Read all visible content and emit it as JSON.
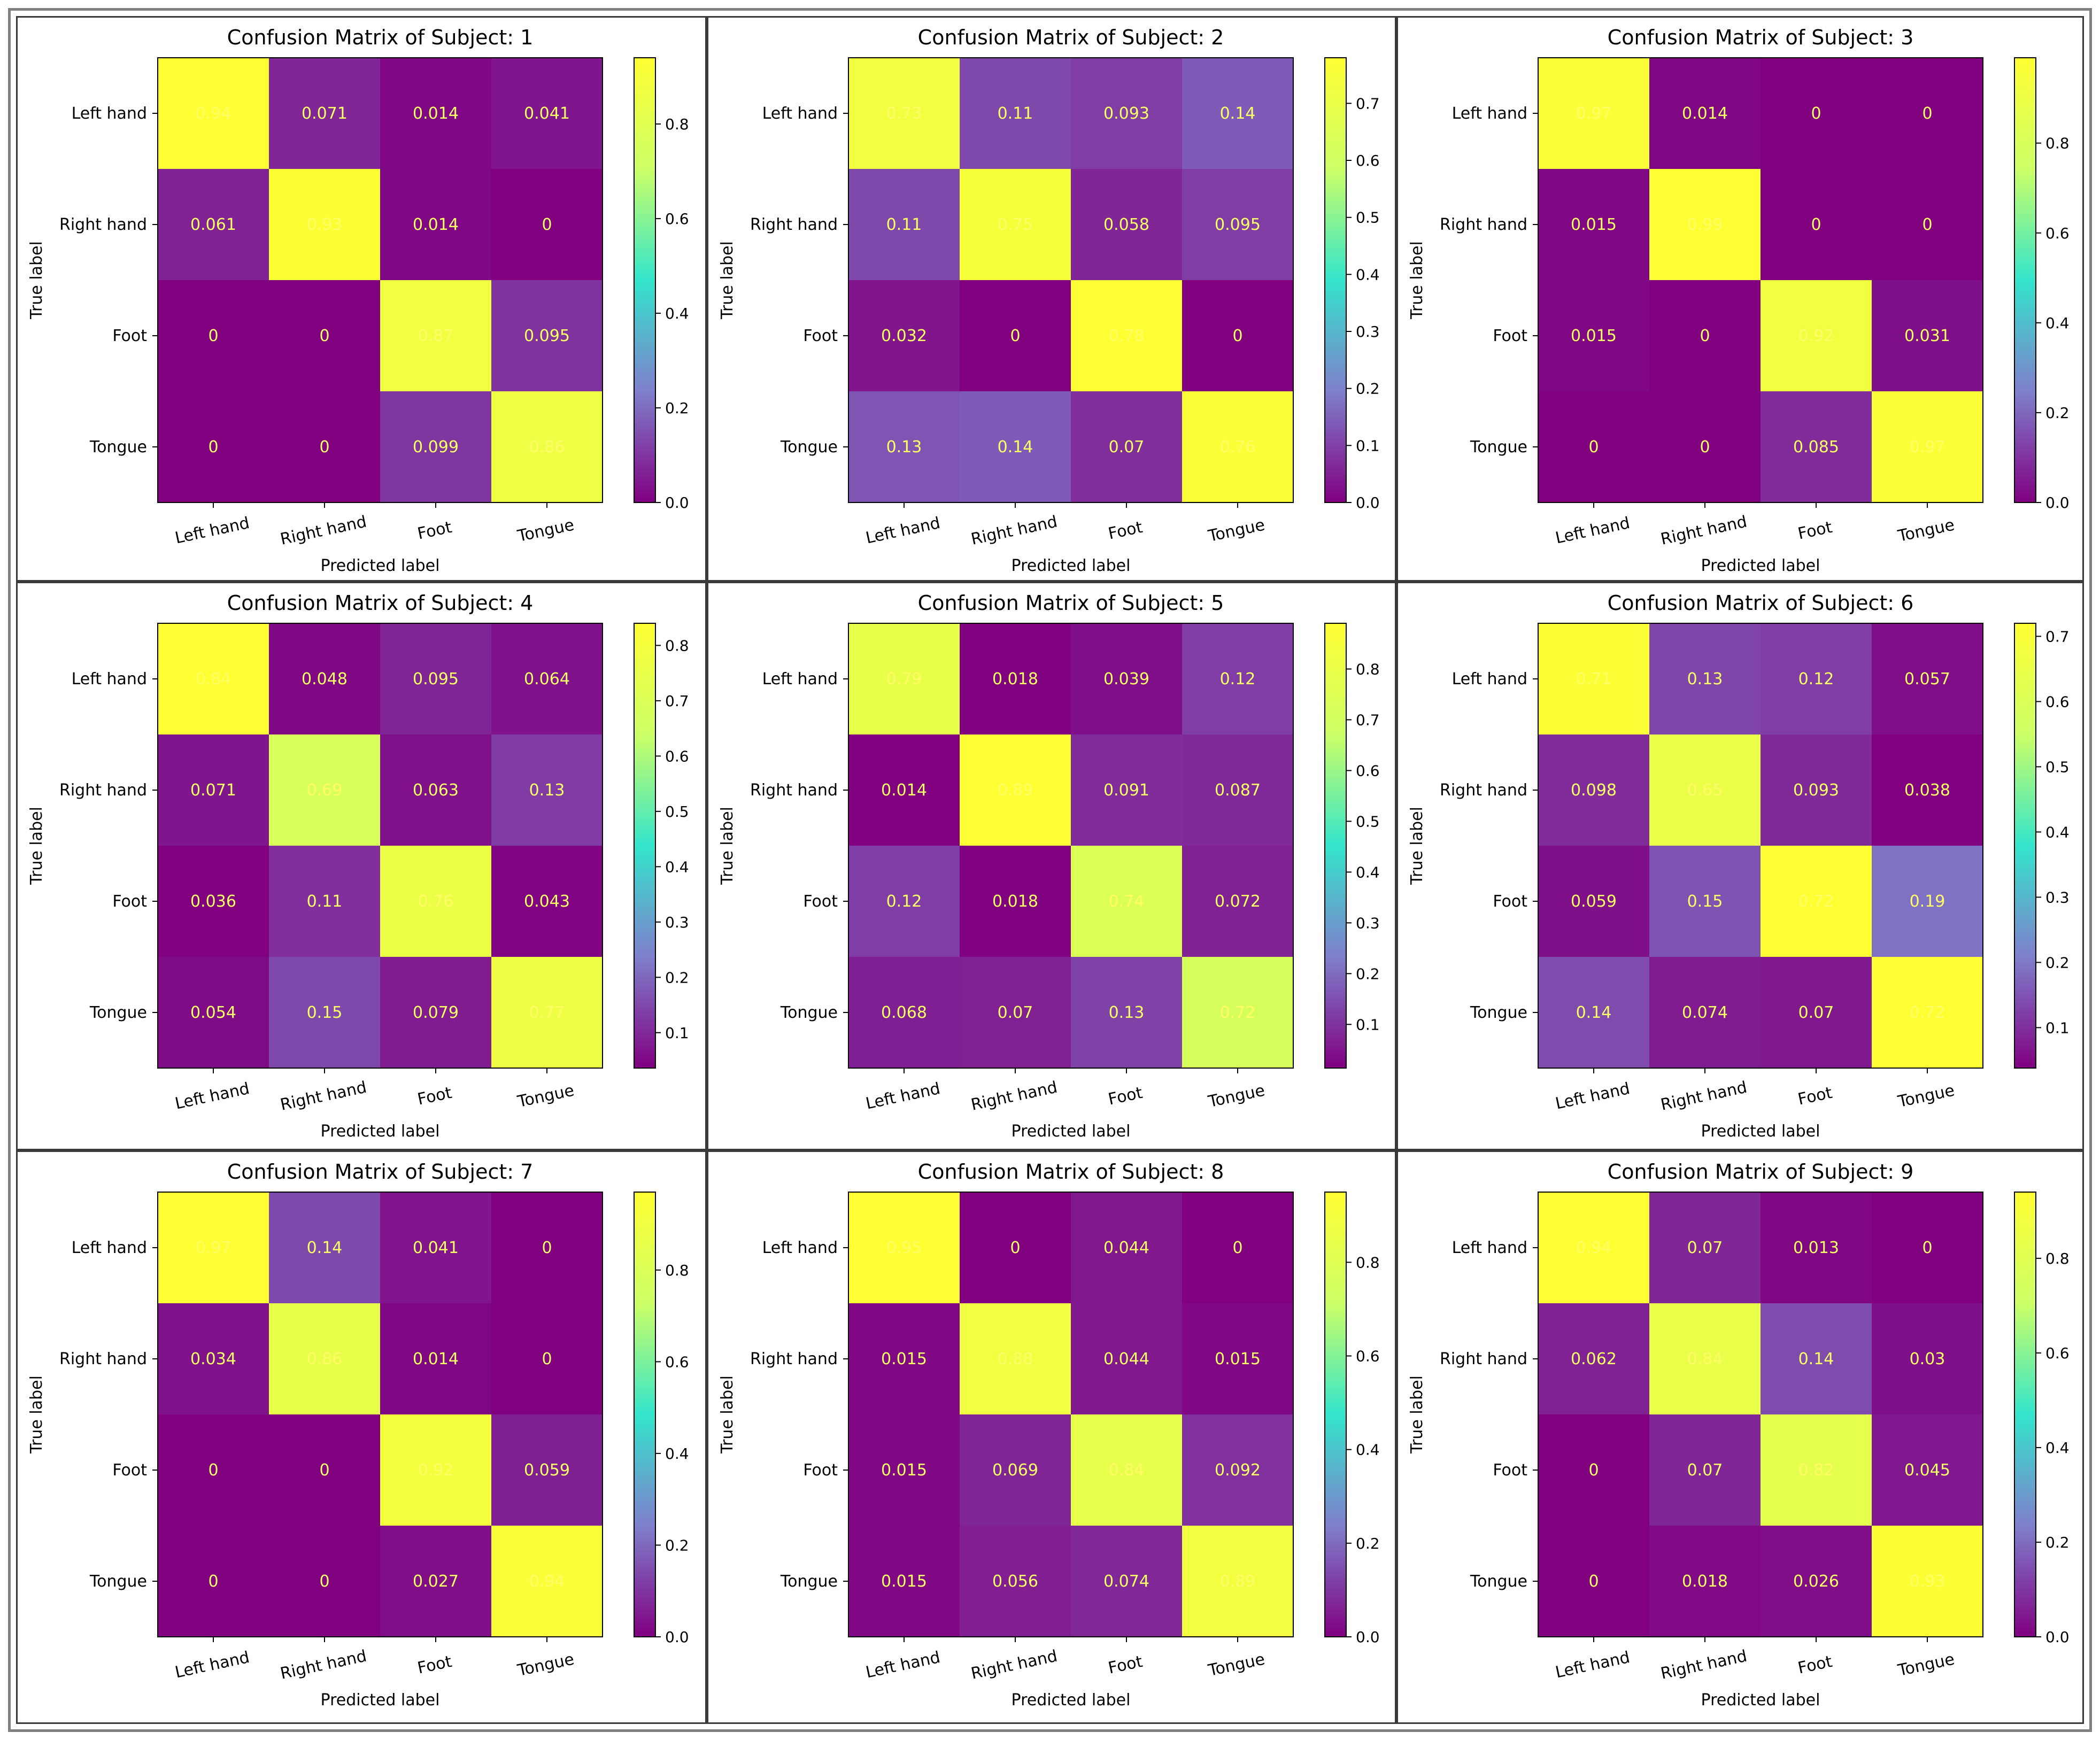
{
  "figure": {
    "outer_border_color": "#7f7f7f"
  },
  "colormap": {
    "name": "plasma-like",
    "stops": [
      "#800080",
      "#7f7fcc",
      "#33e5cc",
      "#ccff66",
      "#ffff33"
    ]
  },
  "chart_data": [
    {
      "type": "heatmap",
      "title": "Confusion Matrix of Subject: 1",
      "xlabel": "Predicted label",
      "ylabel": "True label",
      "row_labels": [
        "Left hand",
        "Right hand",
        "Foot",
        "Tongue"
      ],
      "col_labels": [
        "Left hand",
        "Right hand",
        "Foot",
        "Tongue"
      ],
      "values": [
        [
          0.94,
          0.071,
          0.014,
          0.041
        ],
        [
          0.061,
          0.93,
          0.014,
          0
        ],
        [
          0,
          0,
          0.87,
          0.095
        ],
        [
          0,
          0,
          0.099,
          0.86
        ]
      ],
      "value_labels": [
        [
          "0.94",
          "0.071",
          "0.014",
          "0.041"
        ],
        [
          "0.061",
          "0.93",
          "0.014",
          "0"
        ],
        [
          "0",
          "0",
          "0.87",
          "0.095"
        ],
        [
          "0",
          "0",
          "0.099",
          "0.86"
        ]
      ],
      "colorbar": {
        "min": 0.0,
        "max": 0.94,
        "ticks": [
          0.0,
          0.2,
          0.4,
          0.6,
          0.8
        ],
        "tick_labels": [
          "0.0",
          "0.2",
          "0.4",
          "0.6",
          "0.8"
        ]
      }
    },
    {
      "type": "heatmap",
      "title": "Confusion Matrix of Subject: 2",
      "xlabel": "Predicted label",
      "ylabel": "True label",
      "row_labels": [
        "Left hand",
        "Right hand",
        "Foot",
        "Tongue"
      ],
      "col_labels": [
        "Left hand",
        "Right hand",
        "Foot",
        "Tongue"
      ],
      "values": [
        [
          0.73,
          0.11,
          0.093,
          0.14
        ],
        [
          0.11,
          0.75,
          0.058,
          0.095
        ],
        [
          0.032,
          0,
          0.78,
          0
        ],
        [
          0.13,
          0.14,
          0.07,
          0.76
        ]
      ],
      "value_labels": [
        [
          "0.73",
          "0.11",
          "0.093",
          "0.14"
        ],
        [
          "0.11",
          "0.75",
          "0.058",
          "0.095"
        ],
        [
          "0.032",
          "0",
          "0.78",
          "0"
        ],
        [
          "0.13",
          "0.14",
          "0.07",
          "0.76"
        ]
      ],
      "colorbar": {
        "min": 0.0,
        "max": 0.78,
        "ticks": [
          0.0,
          0.1,
          0.2,
          0.3,
          0.4,
          0.5,
          0.6,
          0.7
        ],
        "tick_labels": [
          "0.0",
          "0.1",
          "0.2",
          "0.3",
          "0.4",
          "0.5",
          "0.6",
          "0.7"
        ]
      }
    },
    {
      "type": "heatmap",
      "title": "Confusion Matrix of Subject: 3",
      "xlabel": "Predicted label",
      "ylabel": "True label",
      "row_labels": [
        "Left hand",
        "Right hand",
        "Foot",
        "Tongue"
      ],
      "col_labels": [
        "Left hand",
        "Right hand",
        "Foot",
        "Tongue"
      ],
      "values": [
        [
          0.97,
          0.014,
          0,
          0
        ],
        [
          0.015,
          0.99,
          0,
          0
        ],
        [
          0.015,
          0,
          0.92,
          0.031
        ],
        [
          0,
          0,
          0.085,
          0.97
        ]
      ],
      "value_labels": [
        [
          "0.97",
          "0.014",
          "0",
          "0"
        ],
        [
          "0.015",
          "0.99",
          "0",
          "0"
        ],
        [
          "0.015",
          "0",
          "0.92",
          "0.031"
        ],
        [
          "0",
          "0",
          "0.085",
          "0.97"
        ]
      ],
      "colorbar": {
        "min": 0.0,
        "max": 0.99,
        "ticks": [
          0.0,
          0.2,
          0.4,
          0.6,
          0.8
        ],
        "tick_labels": [
          "0.0",
          "0.2",
          "0.4",
          "0.6",
          "0.8"
        ]
      }
    },
    {
      "type": "heatmap",
      "title": "Confusion Matrix of Subject: 4",
      "xlabel": "Predicted label",
      "ylabel": "True label",
      "row_labels": [
        "Left hand",
        "Right hand",
        "Foot",
        "Tongue"
      ],
      "col_labels": [
        "Left hand",
        "Right hand",
        "Foot",
        "Tongue"
      ],
      "values": [
        [
          0.84,
          0.048,
          0.095,
          0.064
        ],
        [
          0.071,
          0.69,
          0.063,
          0.13
        ],
        [
          0.036,
          0.11,
          0.76,
          0.043
        ],
        [
          0.054,
          0.15,
          0.079,
          0.77
        ]
      ],
      "value_labels": [
        [
          "0.84",
          "0.048",
          "0.095",
          "0.064"
        ],
        [
          "0.071",
          "0.69",
          "0.063",
          "0.13"
        ],
        [
          "0.036",
          "0.11",
          "0.76",
          "0.043"
        ],
        [
          "0.054",
          "0.15",
          "0.079",
          "0.77"
        ]
      ],
      "colorbar": {
        "min": 0.036,
        "max": 0.84,
        "ticks": [
          0.1,
          0.2,
          0.3,
          0.4,
          0.5,
          0.6,
          0.7,
          0.8
        ],
        "tick_labels": [
          "0.1",
          "0.2",
          "0.3",
          "0.4",
          "0.5",
          "0.6",
          "0.7",
          "0.8"
        ]
      }
    },
    {
      "type": "heatmap",
      "title": "Confusion Matrix of Subject: 5",
      "xlabel": "Predicted label",
      "ylabel": "True label",
      "row_labels": [
        "Left hand",
        "Right hand",
        "Foot",
        "Tongue"
      ],
      "col_labels": [
        "Left hand",
        "Right hand",
        "Foot",
        "Tongue"
      ],
      "values": [
        [
          0.79,
          0.018,
          0.039,
          0.12
        ],
        [
          0.014,
          0.89,
          0.091,
          0.087
        ],
        [
          0.12,
          0.018,
          0.74,
          0.072
        ],
        [
          0.068,
          0.07,
          0.13,
          0.72
        ]
      ],
      "value_labels": [
        [
          "0.79",
          "0.018",
          "0.039",
          "0.12"
        ],
        [
          "0.014",
          "0.89",
          "0.091",
          "0.087"
        ],
        [
          "0.12",
          "0.018",
          "0.74",
          "0.072"
        ],
        [
          "0.068",
          "0.07",
          "0.13",
          "0.72"
        ]
      ],
      "colorbar": {
        "min": 0.014,
        "max": 0.89,
        "ticks": [
          0.1,
          0.2,
          0.3,
          0.4,
          0.5,
          0.6,
          0.7,
          0.8
        ],
        "tick_labels": [
          "0.1",
          "0.2",
          "0.3",
          "0.4",
          "0.5",
          "0.6",
          "0.7",
          "0.8"
        ]
      }
    },
    {
      "type": "heatmap",
      "title": "Confusion Matrix of Subject: 6",
      "xlabel": "Predicted label",
      "ylabel": "True label",
      "row_labels": [
        "Left hand",
        "Right hand",
        "Foot",
        "Tongue"
      ],
      "col_labels": [
        "Left hand",
        "Right hand",
        "Foot",
        "Tongue"
      ],
      "values": [
        [
          0.71,
          0.13,
          0.12,
          0.057
        ],
        [
          0.098,
          0.65,
          0.093,
          0.038
        ],
        [
          0.059,
          0.15,
          0.72,
          0.19
        ],
        [
          0.14,
          0.074,
          0.07,
          0.72
        ]
      ],
      "value_labels": [
        [
          "0.71",
          "0.13",
          "0.12",
          "0.057"
        ],
        [
          "0.098",
          "0.65",
          "0.093",
          "0.038"
        ],
        [
          "0.059",
          "0.15",
          "0.72",
          "0.19"
        ],
        [
          "0.14",
          "0.074",
          "0.07",
          "0.72"
        ]
      ],
      "colorbar": {
        "min": 0.038,
        "max": 0.72,
        "ticks": [
          0.1,
          0.2,
          0.3,
          0.4,
          0.5,
          0.6,
          0.7
        ],
        "tick_labels": [
          "0.1",
          "0.2",
          "0.3",
          "0.4",
          "0.5",
          "0.6",
          "0.7"
        ]
      }
    },
    {
      "type": "heatmap",
      "title": "Confusion Matrix of Subject: 7",
      "xlabel": "Predicted label",
      "ylabel": "True label",
      "row_labels": [
        "Left hand",
        "Right hand",
        "Foot",
        "Tongue"
      ],
      "col_labels": [
        "Left hand",
        "Right hand",
        "Foot",
        "Tongue"
      ],
      "values": [
        [
          0.97,
          0.14,
          0.041,
          0
        ],
        [
          0.034,
          0.86,
          0.014,
          0
        ],
        [
          0,
          0,
          0.92,
          0.059
        ],
        [
          0,
          0,
          0.027,
          0.94
        ]
      ],
      "value_labels": [
        [
          "0.97",
          "0.14",
          "0.041",
          "0"
        ],
        [
          "0.034",
          "0.86",
          "0.014",
          "0"
        ],
        [
          "0",
          "0",
          "0.92",
          "0.059"
        ],
        [
          "0",
          "0",
          "0.027",
          "0.94"
        ]
      ],
      "colorbar": {
        "min": 0.0,
        "max": 0.97,
        "ticks": [
          0.0,
          0.2,
          0.4,
          0.6,
          0.8
        ],
        "tick_labels": [
          "0.0",
          "0.2",
          "0.4",
          "0.6",
          "0.8"
        ]
      }
    },
    {
      "type": "heatmap",
      "title": "Confusion Matrix of Subject: 8",
      "xlabel": "Predicted label",
      "ylabel": "True label",
      "row_labels": [
        "Left hand",
        "Right hand",
        "Foot",
        "Tongue"
      ],
      "col_labels": [
        "Left hand",
        "Right hand",
        "Foot",
        "Tongue"
      ],
      "values": [
        [
          0.95,
          0,
          0.044,
          0
        ],
        [
          0.015,
          0.88,
          0.044,
          0.015
        ],
        [
          0.015,
          0.069,
          0.84,
          0.092
        ],
        [
          0.015,
          0.056,
          0.074,
          0.89
        ]
      ],
      "value_labels": [
        [
          "0.95",
          "0",
          "0.044",
          "0"
        ],
        [
          "0.015",
          "0.88",
          "0.044",
          "0.015"
        ],
        [
          "0.015",
          "0.069",
          "0.84",
          "0.092"
        ],
        [
          "0.015",
          "0.056",
          "0.074",
          "0.89"
        ]
      ],
      "colorbar": {
        "min": 0.0,
        "max": 0.95,
        "ticks": [
          0.0,
          0.2,
          0.4,
          0.6,
          0.8
        ],
        "tick_labels": [
          "0.0",
          "0.2",
          "0.4",
          "0.6",
          "0.8"
        ]
      }
    },
    {
      "type": "heatmap",
      "title": "Confusion Matrix of Subject: 9",
      "xlabel": "Predicted label",
      "ylabel": "True label",
      "row_labels": [
        "Left hand",
        "Right hand",
        "Foot",
        "Tongue"
      ],
      "col_labels": [
        "Left hand",
        "Right hand",
        "Foot",
        "Tongue"
      ],
      "values": [
        [
          0.94,
          0.07,
          0.013,
          0
        ],
        [
          0.062,
          0.84,
          0.14,
          0.03
        ],
        [
          0,
          0.07,
          0.82,
          0.045
        ],
        [
          0,
          0.018,
          0.026,
          0.93
        ]
      ],
      "value_labels": [
        [
          "0.94",
          "0.07",
          "0.013",
          "0"
        ],
        [
          "0.062",
          "0.84",
          "0.14",
          "0.03"
        ],
        [
          "0",
          "0.07",
          "0.82",
          "0.045"
        ],
        [
          "0",
          "0.018",
          "0.026",
          "0.93"
        ]
      ],
      "colorbar": {
        "min": 0.0,
        "max": 0.94,
        "ticks": [
          0.0,
          0.2,
          0.4,
          0.6,
          0.8
        ],
        "tick_labels": [
          "0.0",
          "0.2",
          "0.4",
          "0.6",
          "0.8"
        ]
      }
    }
  ]
}
